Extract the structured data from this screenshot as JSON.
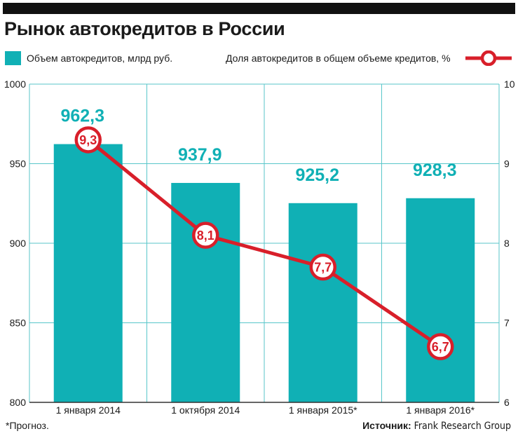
{
  "title": "Рынок автокредитов в России",
  "legend": {
    "bar_label": "Объем автокредитов, млрд руб.",
    "line_label": "Доля автокредитов в общем объеме кредитов, %"
  },
  "colors": {
    "bar": "#10b0b5",
    "line": "#d81f2a",
    "bar_value_text": "#10b0b5",
    "marker_fill": "#ffffff",
    "grid": "#58c6ca"
  },
  "chart_data": {
    "type": "bar",
    "categories": [
      "1 января 2014",
      "1 октября 2014",
      "1 января 2015*",
      "1 января 2016*"
    ],
    "series": [
      {
        "name": "Объем автокредитов, млрд руб.",
        "type": "bar",
        "axis": "left",
        "values": [
          962.3,
          937.9,
          925.2,
          928.3
        ],
        "value_labels": [
          "962,3",
          "937,9",
          "925,2",
          "928,3"
        ]
      },
      {
        "name": "Доля автокредитов в общем объеме кредитов, %",
        "type": "line",
        "axis": "right",
        "values": [
          9.3,
          8.1,
          7.7,
          6.7
        ],
        "value_labels": [
          "9,3",
          "8,1",
          "7,7",
          "6,7"
        ]
      }
    ],
    "y_left": {
      "range": [
        800,
        1000
      ],
      "ticks": [
        "800",
        "850",
        "900",
        "950",
        "1000"
      ]
    },
    "y_right": {
      "range": [
        6,
        10
      ],
      "ticks": [
        "6",
        "7",
        "8",
        "9",
        "10"
      ]
    },
    "grid": true,
    "legend_position": "top"
  },
  "footnote": "*Прогноз.",
  "source": {
    "label": "Источник:",
    "name": "Frank Research Group"
  }
}
